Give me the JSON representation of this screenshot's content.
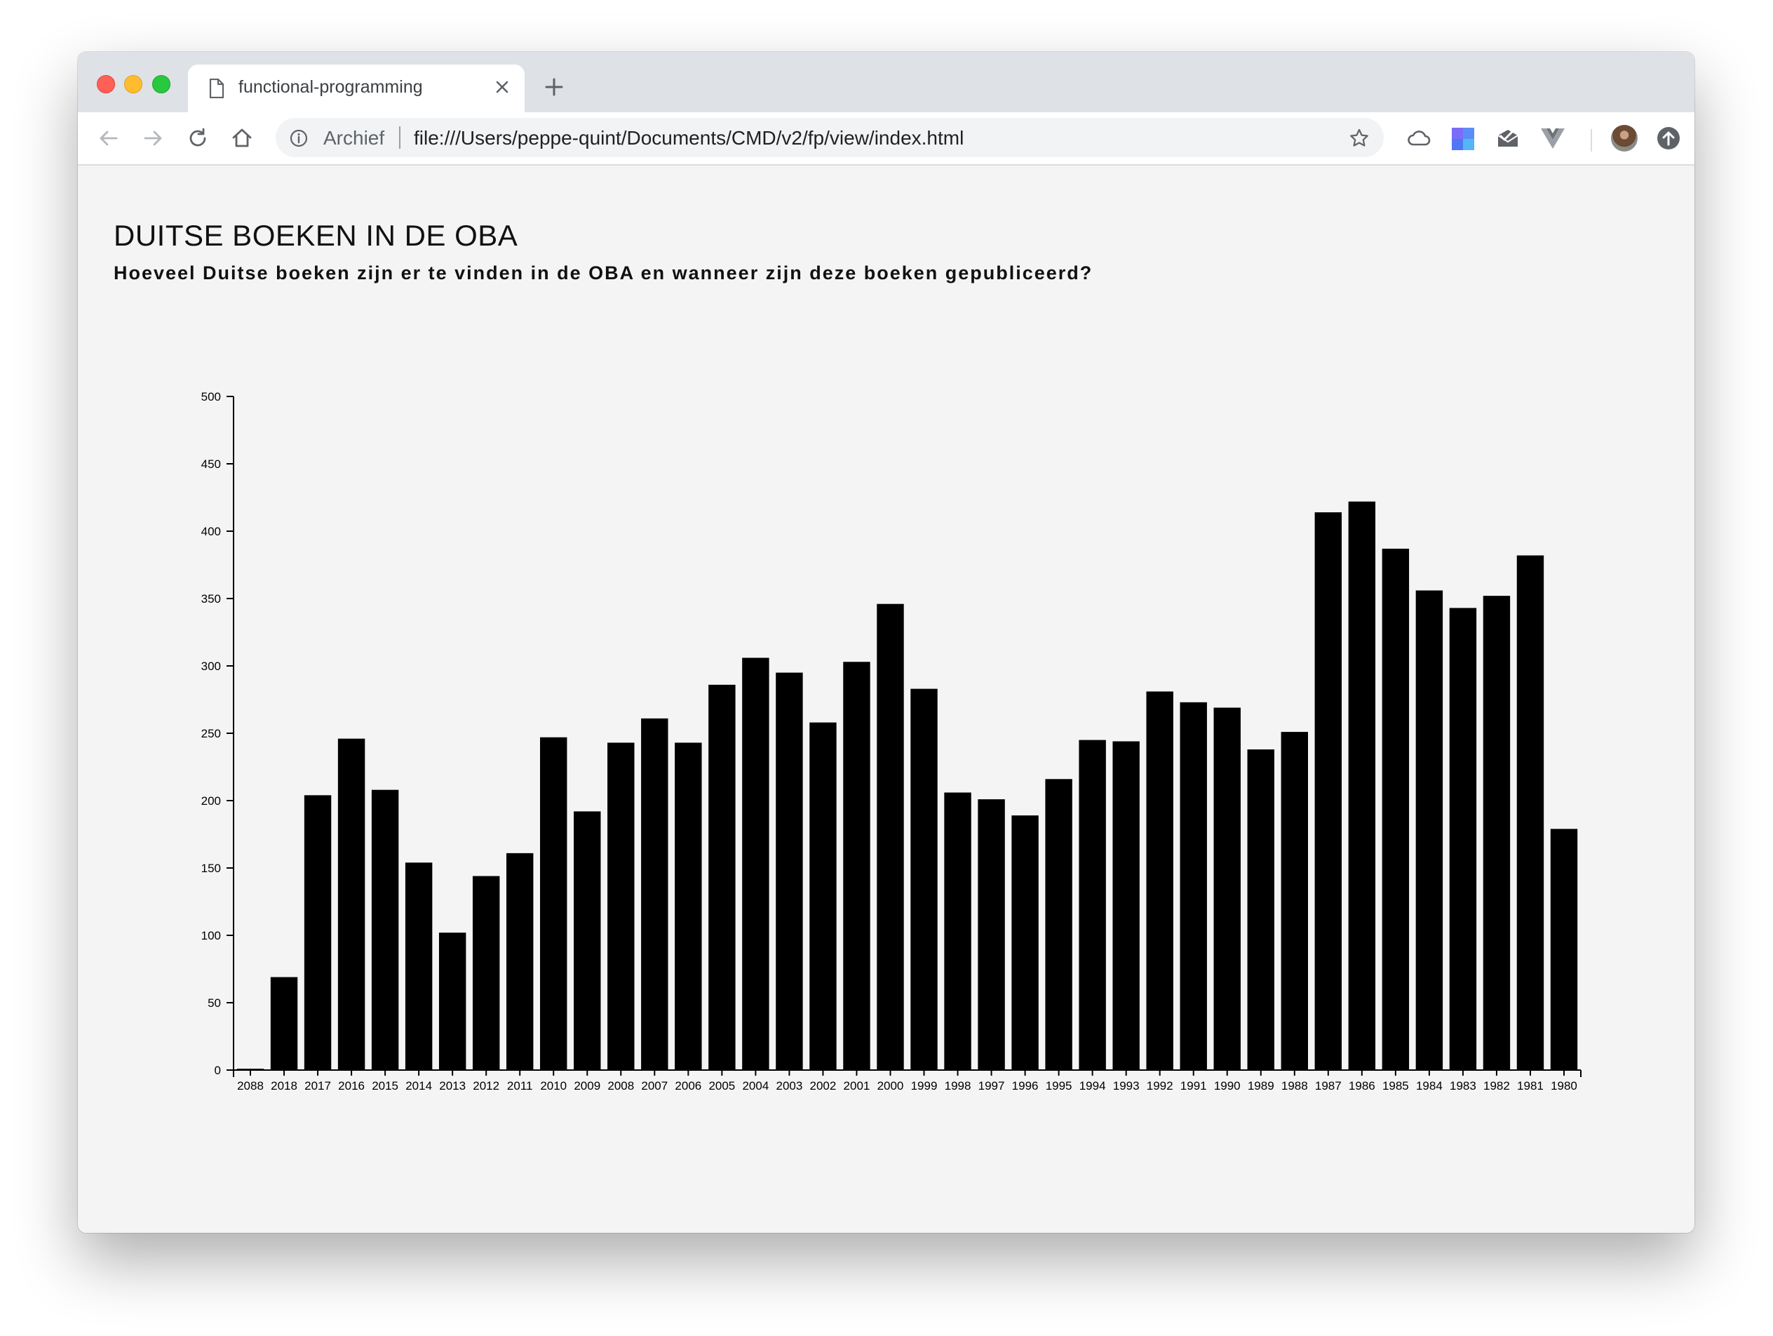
{
  "browser": {
    "tab": {
      "title": "functional-programming"
    },
    "address_bar": {
      "site_label": "Archief",
      "url": "file:///Users/peppe-quint/Documents/CMD/v2/fp/view/index.html"
    },
    "icons": [
      "back-arrow-icon",
      "forward-arrow-icon",
      "reload-icon",
      "home-icon",
      "info-icon",
      "bookmark-star-icon",
      "cloud-icon",
      "extension-icon",
      "mail-icon",
      "vue-icon",
      "profile-avatar",
      "update-icon"
    ]
  },
  "page": {
    "title": "DUITSE BOEKEN IN DE OBA",
    "subtitle": "Hoeveel Duitse boeken zijn er te vinden in de OBA en wanneer zijn deze boeken gepubliceerd?"
  },
  "chart_data": {
    "type": "bar",
    "title": "",
    "xlabel": "",
    "ylabel": "",
    "ylim": [
      0,
      500
    ],
    "yticks": [
      0,
      50,
      100,
      150,
      200,
      250,
      300,
      350,
      400,
      450,
      500
    ],
    "grid": false,
    "bar_color": "#000000",
    "categories": [
      "2088",
      "2018",
      "2017",
      "2016",
      "2015",
      "2014",
      "2013",
      "2012",
      "2011",
      "2010",
      "2009",
      "2008",
      "2007",
      "2006",
      "2005",
      "2004",
      "2003",
      "2002",
      "2001",
      "2000",
      "1999",
      "1998",
      "1997",
      "1996",
      "1995",
      "1994",
      "1993",
      "1992",
      "1991",
      "1990",
      "1989",
      "1988",
      "1987",
      "1986",
      "1985",
      "1984",
      "1983",
      "1982",
      "1981",
      "1980"
    ],
    "values": [
      1,
      69,
      204,
      246,
      208,
      154,
      102,
      144,
      161,
      247,
      192,
      243,
      261,
      243,
      286,
      306,
      295,
      258,
      303,
      346,
      283,
      206,
      201,
      189,
      216,
      245,
      244,
      281,
      273,
      269,
      238,
      251,
      414,
      422,
      387,
      356,
      343,
      352,
      382,
      179
    ]
  }
}
